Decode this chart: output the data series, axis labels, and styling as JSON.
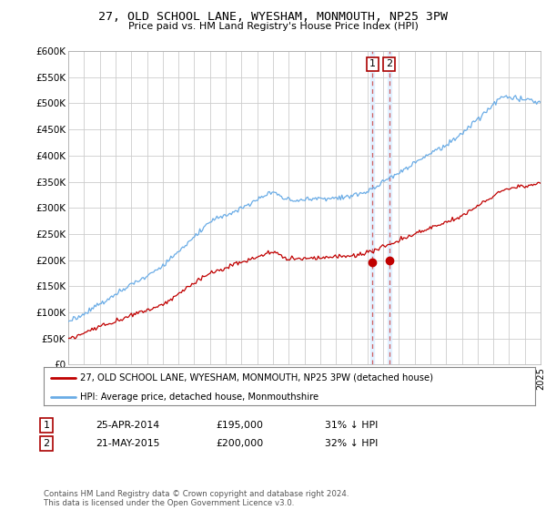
{
  "title": "27, OLD SCHOOL LANE, WYESHAM, MONMOUTH, NP25 3PW",
  "subtitle": "Price paid vs. HM Land Registry's House Price Index (HPI)",
  "ylabel_ticks": [
    "£0",
    "£50K",
    "£100K",
    "£150K",
    "£200K",
    "£250K",
    "£300K",
    "£350K",
    "£400K",
    "£450K",
    "£500K",
    "£550K",
    "£600K"
  ],
  "ytick_values": [
    0,
    50000,
    100000,
    150000,
    200000,
    250000,
    300000,
    350000,
    400000,
    450000,
    500000,
    550000,
    600000
  ],
  "hpi_color": "#6aace6",
  "price_color": "#c00000",
  "marker_color": "#c00000",
  "vline_color": "#d06060",
  "vband_color": "#ddeeff",
  "sale1_date_num": 2014.32,
  "sale2_date_num": 2015.39,
  "sale1_price": 195000,
  "sale2_price": 200000,
  "legend_entry1": "27, OLD SCHOOL LANE, WYESHAM, MONMOUTH, NP25 3PW (detached house)",
  "legend_entry2": "HPI: Average price, detached house, Monmouthshire",
  "table_row1": [
    "1",
    "25-APR-2014",
    "£195,000",
    "31% ↓ HPI"
  ],
  "table_row2": [
    "2",
    "21-MAY-2015",
    "£200,000",
    "32% ↓ HPI"
  ],
  "footnote": "Contains HM Land Registry data © Crown copyright and database right 2024.\nThis data is licensed under the Open Government Licence v3.0.",
  "bg_color": "#ffffff",
  "plot_bg_color": "#ffffff",
  "grid_color": "#cccccc"
}
